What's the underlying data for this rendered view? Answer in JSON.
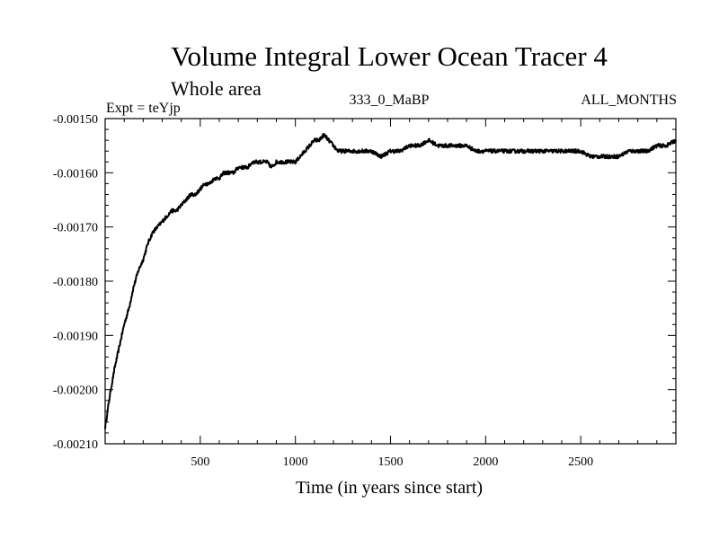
{
  "chart_data": {
    "type": "line",
    "title": "Volume Integral Lower Ocean Tracer 4",
    "subtitle": "Whole area",
    "header_left": "Expt = teYjp",
    "header_center": "333_0_MaBP",
    "header_right": "ALL_MONTHS",
    "xlabel": "Time (in years since start)",
    "ylabel": "",
    "xlim": [
      0,
      3000
    ],
    "ylim": [
      -0.0021,
      -0.0015
    ],
    "x_ticks": [
      500,
      1000,
      1500,
      2000,
      2500
    ],
    "x_tick_labels": [
      "500",
      "1000",
      "1500",
      "2000",
      "2500"
    ],
    "y_ticks": [
      -0.0015,
      -0.0016,
      -0.0017,
      -0.0018,
      -0.0019,
      -0.002,
      -0.0021
    ],
    "y_tick_labels": [
      "-0.00150",
      "-0.00160",
      "-0.00170",
      "-0.00180",
      "-0.00190",
      "-0.00200",
      "-0.00210"
    ],
    "grid": false,
    "series": [
      {
        "name": "Lower Ocean Tracer 4",
        "x": [
          0,
          25,
          50,
          75,
          100,
          125,
          150,
          175,
          200,
          225,
          250,
          275,
          300,
          325,
          350,
          375,
          400,
          425,
          450,
          475,
          500,
          525,
          550,
          575,
          600,
          625,
          650,
          675,
          700,
          725,
          750,
          775,
          800,
          825,
          850,
          875,
          900,
          925,
          950,
          975,
          1000,
          1025,
          1050,
          1075,
          1100,
          1125,
          1150,
          1175,
          1200,
          1225,
          1250,
          1275,
          1300,
          1350,
          1400,
          1450,
          1500,
          1550,
          1600,
          1650,
          1700,
          1750,
          1800,
          1850,
          1900,
          1950,
          2000,
          2050,
          2100,
          2150,
          2200,
          2250,
          2300,
          2350,
          2400,
          2450,
          2500,
          2550,
          2600,
          2650,
          2700,
          2750,
          2800,
          2850,
          2900,
          2950,
          3000
        ],
        "y": [
          -0.00207,
          -0.00201,
          -0.00196,
          -0.00192,
          -0.00188,
          -0.00185,
          -0.00181,
          -0.00178,
          -0.00176,
          -0.00173,
          -0.00171,
          -0.0017,
          -0.00169,
          -0.00168,
          -0.00167,
          -0.00167,
          -0.00166,
          -0.00165,
          -0.00164,
          -0.00164,
          -0.00163,
          -0.00162,
          -0.00162,
          -0.00161,
          -0.00161,
          -0.0016,
          -0.0016,
          -0.0016,
          -0.00159,
          -0.00159,
          -0.00159,
          -0.00158,
          -0.00158,
          -0.00158,
          -0.00158,
          -0.00159,
          -0.00158,
          -0.00158,
          -0.00158,
          -0.00158,
          -0.00158,
          -0.00157,
          -0.00156,
          -0.00155,
          -0.00154,
          -0.00154,
          -0.00153,
          -0.00154,
          -0.00155,
          -0.00156,
          -0.00156,
          -0.00156,
          -0.00156,
          -0.00156,
          -0.00156,
          -0.00157,
          -0.00156,
          -0.00156,
          -0.00155,
          -0.00155,
          -0.00154,
          -0.00155,
          -0.00155,
          -0.00155,
          -0.00155,
          -0.00156,
          -0.00156,
          -0.00156,
          -0.00156,
          -0.00156,
          -0.00156,
          -0.00156,
          -0.00156,
          -0.00156,
          -0.00156,
          -0.00156,
          -0.00156,
          -0.00157,
          -0.00157,
          -0.00157,
          -0.00157,
          -0.00156,
          -0.00156,
          -0.00156,
          -0.00155,
          -0.00155,
          -0.00154
        ]
      }
    ]
  }
}
